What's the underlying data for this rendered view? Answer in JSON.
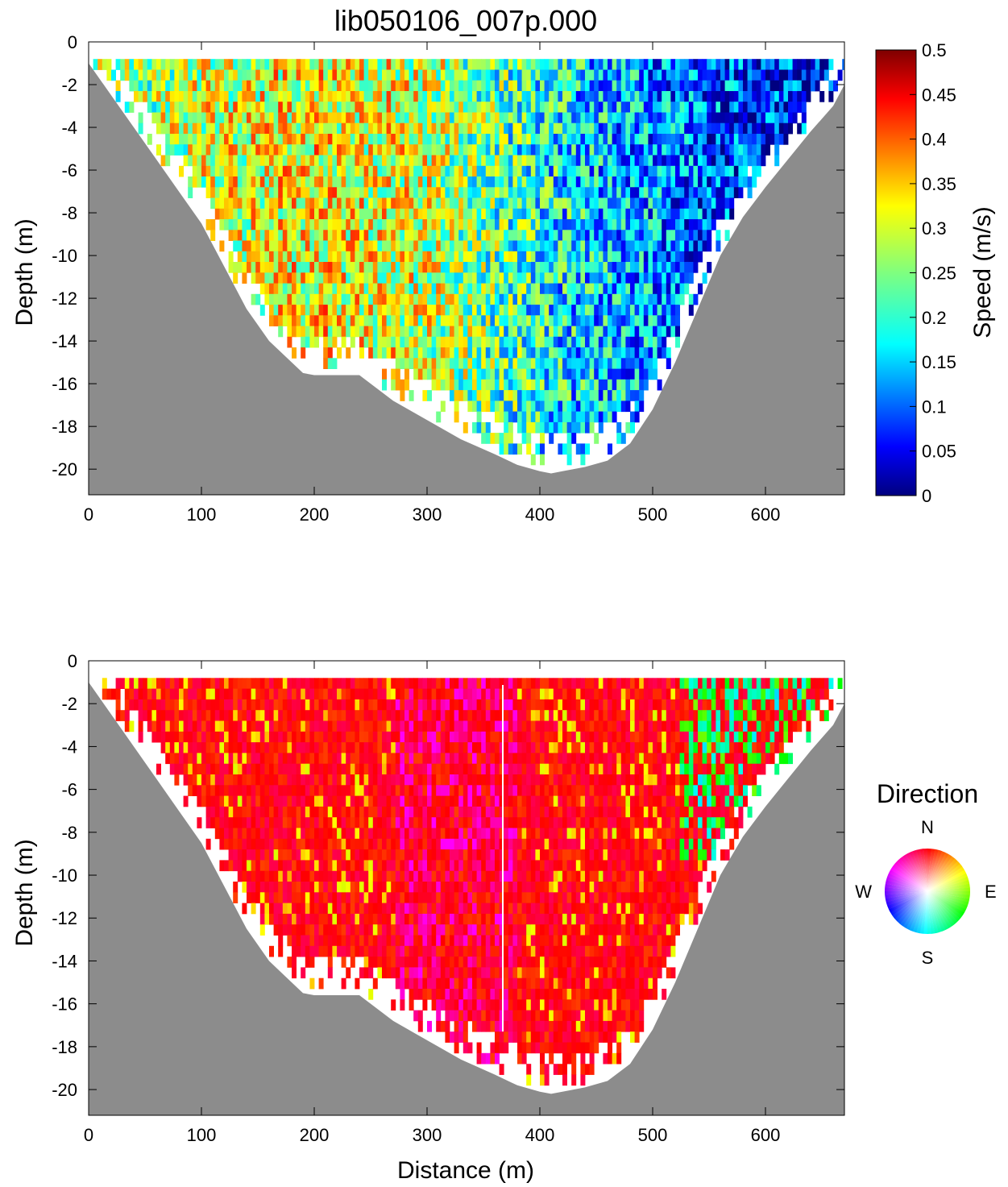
{
  "title": "lib050106_007p.000",
  "chart_data": [
    {
      "type": "heatmap",
      "name": "speed-panel",
      "xlabel": "",
      "ylabel": "Depth (m)",
      "xlim": [
        0,
        670
      ],
      "ylim": [
        -21.2,
        0
      ],
      "xticks": [
        0,
        100,
        200,
        300,
        400,
        500,
        600
      ],
      "yticks": [
        0,
        -2,
        -4,
        -6,
        -8,
        -10,
        -12,
        -14,
        -16,
        -18,
        -20
      ],
      "bottom_profile": {
        "x": [
          0,
          20,
          40,
          60,
          80,
          100,
          120,
          140,
          160,
          180,
          190,
          200,
          240,
          270,
          300,
          330,
          360,
          380,
          400,
          410,
          420,
          440,
          460,
          480,
          500,
          520,
          540,
          560,
          580,
          600,
          620,
          640,
          660,
          670
        ],
        "depth": [
          -1.0,
          -2.5,
          -4.0,
          -5.5,
          -7.0,
          -8.5,
          -10.5,
          -12.5,
          -14.0,
          -15.0,
          -15.5,
          -15.6,
          -15.6,
          -16.8,
          -17.7,
          -18.6,
          -19.3,
          -19.8,
          -20.1,
          -20.2,
          -20.1,
          -19.9,
          -19.6,
          -18.8,
          -17.2,
          -15.0,
          -12.5,
          -10.0,
          -8.2,
          -6.8,
          -5.5,
          -4.2,
          -3.0,
          -2.0
        ]
      },
      "first_bin_depth": -0.8,
      "colorbar": {
        "label": "Speed (m/s)",
        "ticks": [
          0,
          0.05,
          0.1,
          0.15,
          0.2,
          0.25,
          0.3,
          0.35,
          0.4,
          0.45,
          0.5
        ],
        "range": [
          0,
          0.5
        ],
        "colormap": "jet"
      },
      "field_summary": {
        "x": [
          0,
          100,
          200,
          300,
          400,
          500,
          600,
          670
        ],
        "mean_speed": [
          0.24,
          0.29,
          0.32,
          0.29,
          0.19,
          0.13,
          0.08,
          0.07
        ]
      }
    },
    {
      "type": "heatmap",
      "name": "direction-panel",
      "xlabel": "Distance (m)",
      "ylabel": "Depth (m)",
      "xlim": [
        0,
        670
      ],
      "ylim": [
        -21.2,
        0
      ],
      "xticks": [
        0,
        100,
        200,
        300,
        400,
        500,
        600
      ],
      "yticks": [
        0,
        -2,
        -4,
        -6,
        -8,
        -10,
        -12,
        -14,
        -16,
        -18,
        -20
      ],
      "legend": {
        "title": "Direction",
        "labels": {
          "north": "N",
          "east": "E",
          "south": "S",
          "west": "W"
        }
      }
    }
  ],
  "colors": {
    "bottom": "#8c8c8c",
    "background": "#ffffff"
  }
}
